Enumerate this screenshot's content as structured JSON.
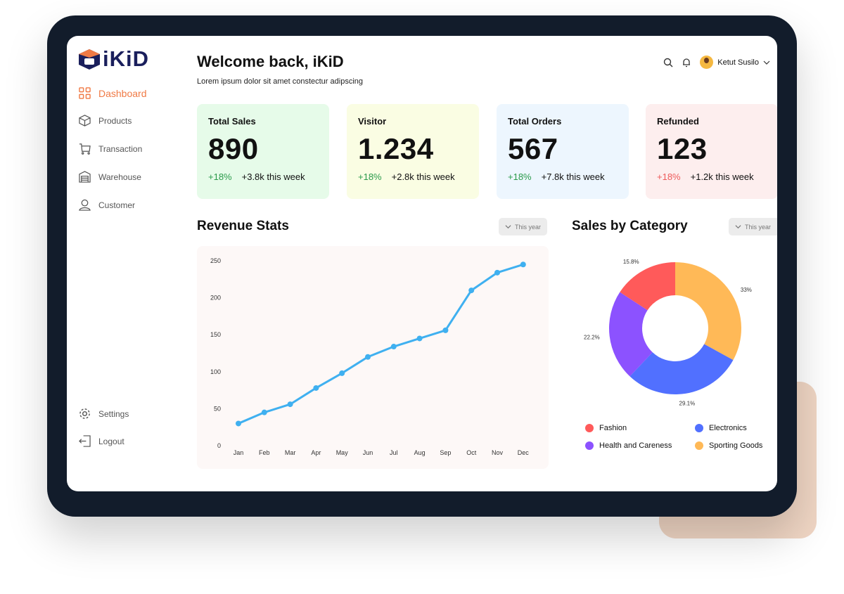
{
  "brand": {
    "name": "iKiD"
  },
  "sidebar": {
    "items": [
      {
        "label": "Dashboard",
        "icon": "grid-icon"
      },
      {
        "label": "Products",
        "icon": "box-icon"
      },
      {
        "label": "Transaction",
        "icon": "cart-icon"
      },
      {
        "label": "Warehouse",
        "icon": "warehouse-icon"
      },
      {
        "label": "Customer",
        "icon": "user-icon"
      }
    ],
    "bottom": [
      {
        "label": "Settings",
        "icon": "gear-icon"
      },
      {
        "label": "Logout",
        "icon": "logout-icon"
      }
    ]
  },
  "header": {
    "title": "Welcome back, iKiD",
    "subtitle": "Lorem ipsum dolor sit amet constectur adipscing",
    "user": "Ketut Susilo"
  },
  "cards": [
    {
      "title": "Total Sales",
      "value": "890",
      "change": "+18%",
      "week": "+3.8k this week"
    },
    {
      "title": "Visitor",
      "value": "1.234",
      "change": "+18%",
      "week": "+2.8k this week"
    },
    {
      "title": "Total Orders",
      "value": "567",
      "change": "+18%",
      "week": "+7.8k this week"
    },
    {
      "title": "Refunded",
      "value": "123",
      "change": "+18%",
      "week": "+1.2k this week"
    }
  ],
  "revenue": {
    "title": "Revenue Stats",
    "filter": "This year"
  },
  "category": {
    "title": "Sales by Category",
    "filter": "This year"
  },
  "colors": {
    "accent": "#f07a45",
    "line": "#3fb0f0",
    "fashion": "#ff5a5a",
    "electronics": "#5170ff",
    "health": "#8c52ff",
    "sporting": "#ffb957"
  },
  "chart_data": [
    {
      "type": "line",
      "title": "Revenue Stats",
      "categories": [
        "Jan",
        "Feb",
        "Mar",
        "Apr",
        "May",
        "Jun",
        "Jul",
        "Aug",
        "Sep",
        "Oct",
        "Nov",
        "Dec"
      ],
      "values": [
        30,
        45,
        56,
        78,
        98,
        120,
        134,
        145,
        156,
        210,
        234,
        245
      ],
      "yticks": [
        "0",
        "50",
        "100",
        "150",
        "200",
        "250"
      ],
      "ylim": [
        0,
        250
      ]
    },
    {
      "type": "pie",
      "title": "Sales by Category",
      "labels": [
        "Sporting Goods",
        "Electronics",
        "Health and Careness",
        "Fashion"
      ],
      "values": [
        33,
        29.1,
        22.2,
        15.8
      ],
      "value_labels": [
        "33%",
        "29.1%",
        "22.2%",
        "15.8%"
      ],
      "legend": [
        "Fashion",
        "Electronics",
        "Health and Careness",
        "Sporting Goods"
      ],
      "legend_placement": "bottom"
    }
  ]
}
